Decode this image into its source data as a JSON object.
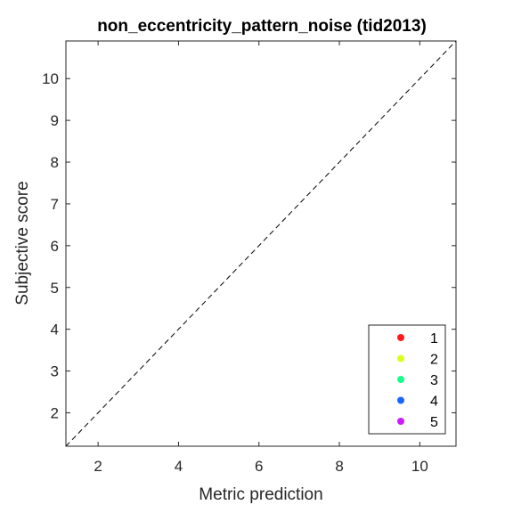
{
  "chart_data": {
    "type": "scatter",
    "title": "non_eccentricity_pattern_noise (tid2013)",
    "xlabel": "Metric prediction",
    "ylabel": "Subjective score",
    "xlim": [
      1.2,
      10.9
    ],
    "ylim": [
      1.2,
      10.9
    ],
    "xticks": [
      2,
      4,
      6,
      8,
      10
    ],
    "yticks": [
      2,
      3,
      4,
      5,
      6,
      7,
      8,
      9,
      10
    ],
    "reference_line": "diagonal dashed y = x",
    "grid": false,
    "legend_position": "bottom-right",
    "series": [
      {
        "name": "1",
        "color": "#ff1a1a",
        "points": []
      },
      {
        "name": "2",
        "color": "#d9ff1a",
        "points": []
      },
      {
        "name": "3",
        "color": "#1aff8c",
        "points": []
      },
      {
        "name": "4",
        "color": "#1a66ff",
        "points": []
      },
      {
        "name": "5",
        "color": "#cc1aff",
        "points": []
      }
    ]
  }
}
